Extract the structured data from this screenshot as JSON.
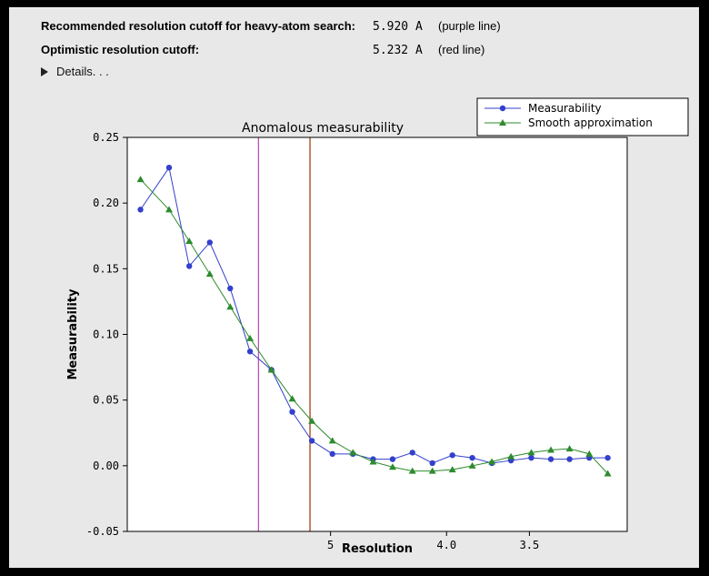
{
  "header": {
    "rows": [
      {
        "label": "Recommended resolution cutoff for heavy-atom search:",
        "value": "5.920 A",
        "note": "(purple line)"
      },
      {
        "label": "Optimistic resolution cutoff:",
        "value": "5.232 A",
        "note": "(red line)"
      }
    ],
    "details_label": "Details. . ."
  },
  "colors": {
    "outer_bg": "#000000",
    "panel_bg": "#e8e8e8",
    "plot_bg": "#ffffff",
    "axis": "#000000",
    "measurability": "#3340cc",
    "smooth": "#2e8b2e",
    "purple_line": "#bb44bb",
    "red_line": "#993300"
  },
  "chart_data": {
    "type": "line",
    "title": "Anomalous measurability",
    "xlabel": "Resolution",
    "ylabel": "Measurability",
    "x_scale": "inverse resolution (1/d), higher resolution to the right",
    "xlim_d": [
      8.9,
      3.05
    ],
    "ylim": [
      -0.05,
      0.25
    ],
    "yticks": [
      0.25,
      0.2,
      0.15,
      0.1,
      0.05,
      0.0,
      -0.05
    ],
    "xticks": [
      {
        "label": "5",
        "d": 5.0
      },
      {
        "label": "4.0",
        "d": 4.0
      },
      {
        "label": "3.5",
        "d": 3.5
      }
    ],
    "resolution_d": [
      8.47,
      7.67,
      7.19,
      6.76,
      6.38,
      6.05,
      5.73,
      5.45,
      5.21,
      4.98,
      4.77,
      4.58,
      4.41,
      4.25,
      4.1,
      3.96,
      3.83,
      3.71,
      3.6,
      3.49,
      3.39,
      3.3,
      3.21,
      3.13
    ],
    "series": [
      {
        "name": "Measurability",
        "marker": "circle",
        "color": "#3340cc",
        "values": [
          0.195,
          0.227,
          0.152,
          0.17,
          0.135,
          0.087,
          0.073,
          0.041,
          0.019,
          0.009,
          0.009,
          0.005,
          0.005,
          0.01,
          0.002,
          0.008,
          0.006,
          0.002,
          0.004,
          0.006,
          0.005,
          0.005,
          0.006,
          0.006
        ]
      },
      {
        "name": "Smooth approximation",
        "marker": "triangle",
        "color": "#2e8b2e",
        "values": [
          0.218,
          0.195,
          0.171,
          0.146,
          0.121,
          0.097,
          0.073,
          0.051,
          0.034,
          0.019,
          0.01,
          0.003,
          -0.001,
          -0.004,
          -0.004,
          -0.003,
          0.0,
          0.003,
          0.007,
          0.01,
          0.012,
          0.013,
          0.009,
          -0.006
        ]
      }
    ],
    "vlines": [
      {
        "name": "recommended-cutoff-purple-line",
        "d": 5.92,
        "color": "#bb44bb"
      },
      {
        "name": "optimistic-cutoff-red-line",
        "d": 5.232,
        "color": "#993300"
      }
    ],
    "legend": {
      "position": "top-right",
      "entries": [
        "Measurability",
        "Smooth approximation"
      ]
    }
  }
}
